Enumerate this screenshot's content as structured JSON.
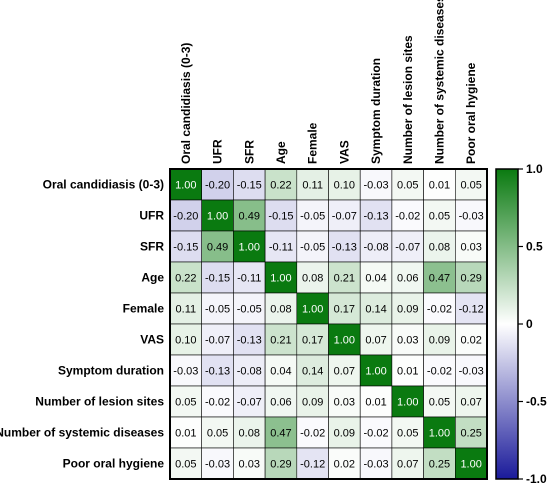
{
  "chart_data": {
    "type": "heatmap",
    "title": "",
    "row_labels": [
      "Oral candidiasis (0-3)",
      "UFR",
      "SFR",
      "Age",
      "Female",
      "VAS",
      "Symptom duration",
      "Number of lesion sites",
      "Number of systemic diseases",
      "Poor oral hygiene"
    ],
    "col_labels": [
      "Oral candidiasis (0-3)",
      "UFR",
      "SFR",
      "Age",
      "Female",
      "VAS",
      "Symptom duration",
      "Number of lesion sites",
      "Number of systemic diseases",
      "Poor oral hygiene"
    ],
    "values": [
      [
        1.0,
        -0.2,
        -0.15,
        0.22,
        0.11,
        0.1,
        -0.03,
        0.05,
        0.01,
        0.05
      ],
      [
        -0.2,
        1.0,
        0.49,
        -0.15,
        -0.05,
        -0.07,
        -0.13,
        -0.02,
        0.05,
        -0.03
      ],
      [
        -0.15,
        0.49,
        1.0,
        -0.11,
        -0.05,
        -0.13,
        -0.08,
        -0.07,
        0.08,
        0.03
      ],
      [
        0.22,
        -0.15,
        -0.11,
        1.0,
        0.08,
        0.21,
        0.04,
        0.06,
        0.47,
        0.29
      ],
      [
        0.11,
        -0.05,
        -0.05,
        0.08,
        1.0,
        0.17,
        0.14,
        0.09,
        -0.02,
        -0.12
      ],
      [
        0.1,
        -0.07,
        -0.13,
        0.21,
        0.17,
        1.0,
        0.07,
        0.03,
        0.09,
        0.02
      ],
      [
        -0.03,
        -0.13,
        -0.08,
        0.04,
        0.14,
        0.07,
        1.0,
        0.01,
        -0.02,
        -0.03
      ],
      [
        0.05,
        -0.02,
        -0.07,
        0.06,
        0.09,
        0.03,
        0.01,
        1.0,
        0.05,
        0.07
      ],
      [
        0.01,
        0.05,
        0.08,
        0.47,
        -0.02,
        0.09,
        -0.02,
        0.05,
        1.0,
        0.25
      ],
      [
        0.05,
        -0.03,
        0.03,
        0.29,
        -0.12,
        0.02,
        -0.03,
        0.07,
        0.25,
        1.0
      ]
    ],
    "value_labels": [
      [
        "1.00",
        "-0.20",
        "-0.15",
        "0.22",
        "0.11",
        "0.10",
        "-0.03",
        "0.05",
        "0.01",
        "0.05"
      ],
      [
        "-0.20",
        "1.00",
        "0.49",
        "-0.15",
        "-0.05",
        "-0.07",
        "-0.13",
        "-0.02",
        "0.05",
        "-0.03"
      ],
      [
        "-0.15",
        "0.49",
        "1.00",
        "-0.11",
        "-0.05",
        "-0.13",
        "-0.08",
        "-0.07",
        "0.08",
        "0.03"
      ],
      [
        "0.22",
        "-0.15",
        "-0.11",
        "1.00",
        "0.08",
        "0.21",
        "0.04",
        "0.06",
        "0.47",
        "0.29"
      ],
      [
        "0.11",
        "-0.05",
        "-0.05",
        "0.08",
        "1.00",
        "0.17",
        "0.14",
        "0.09",
        "-0.02",
        "-0.12"
      ],
      [
        "0.10",
        "-0.07",
        "-0.13",
        "0.21",
        "0.17",
        "1.00",
        "0.07",
        "0.03",
        "0.09",
        "0.02"
      ],
      [
        "-0.03",
        "-0.13",
        "-0.08",
        "0.04",
        "0.14",
        "0.07",
        "1.00",
        "0.01",
        "-0.02",
        "-0.03"
      ],
      [
        "0.05",
        "-0.02",
        "-0.07",
        "0.06",
        "0.09",
        "0.03",
        "0.01",
        "1.00",
        "0.05",
        "0.07"
      ],
      [
        "0.01",
        "0.05",
        "0.08",
        "0.47",
        "-0.02",
        "0.09",
        "-0.02",
        "0.05",
        "1.00",
        "0.25"
      ],
      [
        "0.05",
        "-0.03",
        "0.03",
        "0.29",
        "-0.12",
        "0.02",
        "-0.03",
        "0.07",
        "0.25",
        "1.00"
      ]
    ],
    "colorbar": {
      "range": [
        -1.0,
        1.0
      ],
      "ticks": [
        1.0,
        0.5,
        0,
        -0.5,
        -1.0
      ],
      "tick_labels": [
        "1.0",
        "0.5",
        "0",
        "-0.5",
        "-1.0"
      ],
      "colors": {
        "positive": "#0a7a10",
        "zero": "#ffffff",
        "negative": "#1a1a9a"
      }
    }
  }
}
